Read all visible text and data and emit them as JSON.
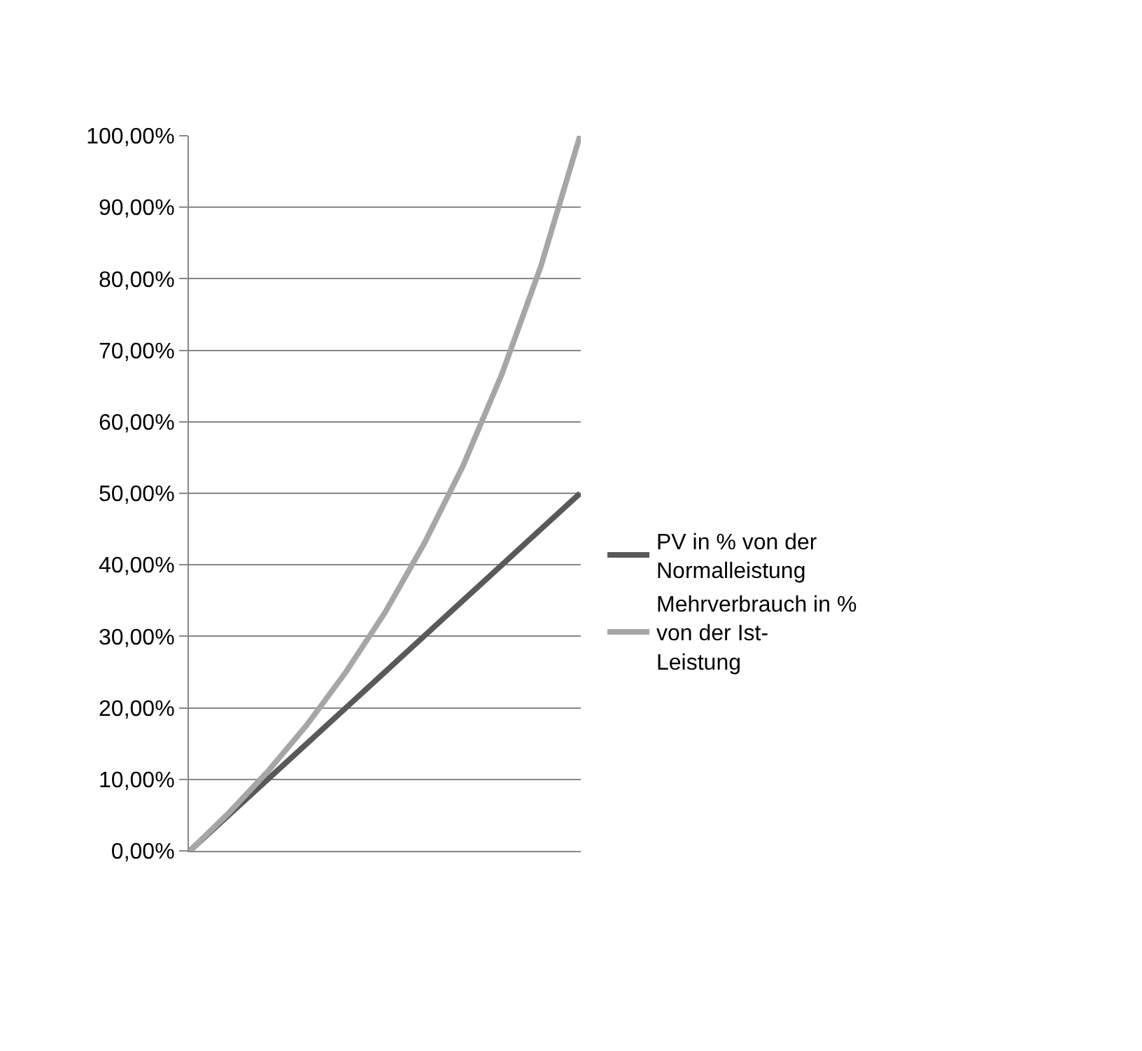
{
  "chart_data": {
    "type": "line",
    "categories": [
      null,
      null,
      null,
      null,
      null,
      null,
      null,
      null,
      null,
      null,
      null
    ],
    "series": [
      {
        "name": "PV in % von der Normalleistung",
        "color": "#595959",
        "values": [
          0,
          5,
          10,
          15,
          20,
          25,
          30,
          35,
          40,
          45,
          50
        ]
      },
      {
        "name": "Mehrverbrauch in % von der Ist-Leistung",
        "color": "#a6a6a6",
        "values": [
          0,
          5.3,
          11.1,
          17.6,
          25,
          33.3,
          42.9,
          53.8,
          66.7,
          81.8,
          100
        ]
      }
    ],
    "ylim": [
      0,
      100
    ],
    "yticks": [
      {
        "value": 0,
        "label": "0,00%"
      },
      {
        "value": 10,
        "label": "10,00%"
      },
      {
        "value": 20,
        "label": "20,00%"
      },
      {
        "value": 30,
        "label": "30,00%"
      },
      {
        "value": 40,
        "label": "40,00%"
      },
      {
        "value": 50,
        "label": "50,00%"
      },
      {
        "value": 60,
        "label": "60,00%"
      },
      {
        "value": 70,
        "label": "70,00%"
      },
      {
        "value": 80,
        "label": "80,00%"
      },
      {
        "value": 90,
        "label": "90,00%"
      },
      {
        "value": 100,
        "label": "100,00%"
      }
    ],
    "grid": "y",
    "legend": "right",
    "marker": "none",
    "line_style": "solid"
  }
}
